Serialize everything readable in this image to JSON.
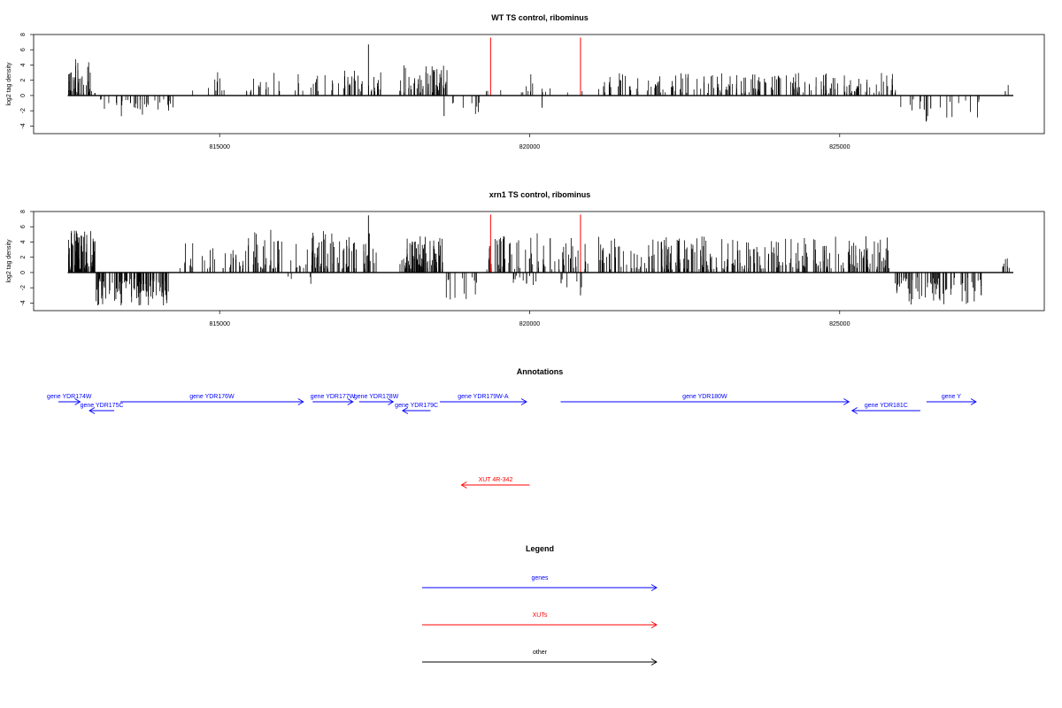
{
  "colors": {
    "gene": "#0000ff",
    "xut": "#ff0000",
    "other": "#000000",
    "bar": "#000000"
  },
  "chart_data": [
    {
      "type": "bar",
      "title": "WT TS control, ribominus",
      "ylabel": "log2 tag density",
      "yticks": [
        "-4",
        "-2",
        "0",
        "2",
        "4",
        "6",
        "8"
      ],
      "ylim": [
        -5,
        8
      ],
      "xlim": [
        812000,
        828300
      ],
      "xtick_values": [
        815000,
        820000,
        825000
      ],
      "xtick_labels": [
        "815000",
        "820000",
        "825000"
      ],
      "seed": 11,
      "highlight_bars": [
        {
          "x": 819370,
          "y": 7.6
        },
        {
          "x": 820820,
          "y": 7.6
        }
      ],
      "density_segments": [
        {
          "from": 812550,
          "to": 813000,
          "min": 0.3,
          "max": 4.8,
          "n": 40
        },
        {
          "from": 813000,
          "to": 814300,
          "min": -2.8,
          "max": -0.5,
          "n": 34
        },
        {
          "from": 814350,
          "to": 815200,
          "min": 0.6,
          "max": 3.2,
          "n": 9
        },
        {
          "from": 815400,
          "to": 817100,
          "min": 0.5,
          "max": 3.0,
          "n": 30
        },
        {
          "from": 816800,
          "to": 817600,
          "min": 0.5,
          "max": 3.3,
          "n": 30
        },
        {
          "from": 817900,
          "to": 818700,
          "min": 0.4,
          "max": 4.0,
          "n": 55
        },
        {
          "from": 818500,
          "to": 819200,
          "min": -2.6,
          "max": -0.6,
          "n": 8
        },
        {
          "from": 819300,
          "to": 821100,
          "min": 0.4,
          "max": 2.8,
          "n": 16
        },
        {
          "from": 821100,
          "to": 825900,
          "min": 0.3,
          "max": 3.0,
          "n": 190
        },
        {
          "from": 825950,
          "to": 827300,
          "min": -3.5,
          "max": -0.5,
          "n": 22
        },
        {
          "from": 827650,
          "to": 827720,
          "min": 0.5,
          "max": 2.0,
          "n": 3
        }
      ],
      "spikes": [
        {
          "x": 817400,
          "y": 6.7
        },
        {
          "x": 818620,
          "y": -2.7
        },
        {
          "x": 820200,
          "y": -1.6
        },
        {
          "x": 826400,
          "y": -3.3
        }
      ]
    },
    {
      "type": "bar",
      "title": "xrn1 TS control, ribominus",
      "ylabel": "log2 tag density",
      "yticks": [
        "-4",
        "-2",
        "0",
        "2",
        "4",
        "6",
        "8"
      ],
      "ylim": [
        -5,
        8
      ],
      "xlim": [
        812000,
        828300
      ],
      "xtick_values": [
        815000,
        820000,
        825000
      ],
      "xtick_labels": [
        "815000",
        "820000",
        "825000"
      ],
      "seed": 29,
      "highlight_bars": [
        {
          "x": 819370,
          "y": 7.6
        },
        {
          "x": 820820,
          "y": 7.6
        }
      ],
      "density_segments": [
        {
          "from": 812550,
          "to": 813000,
          "min": 0.4,
          "max": 5.8,
          "n": 70
        },
        {
          "from": 813000,
          "to": 814200,
          "min": -4.4,
          "max": -0.8,
          "n": 110
        },
        {
          "from": 814350,
          "to": 815300,
          "min": 0.5,
          "max": 4.0,
          "n": 30
        },
        {
          "from": 815300,
          "to": 817600,
          "min": 0.5,
          "max": 5.6,
          "n": 120
        },
        {
          "from": 816100,
          "to": 816500,
          "min": -1.8,
          "max": -0.5,
          "n": 4
        },
        {
          "from": 817900,
          "to": 818600,
          "min": 0.5,
          "max": 4.8,
          "n": 90
        },
        {
          "from": 818650,
          "to": 819300,
          "min": -3.6,
          "max": -0.6,
          "n": 12
        },
        {
          "from": 819300,
          "to": 821000,
          "min": 0.4,
          "max": 5.2,
          "n": 70
        },
        {
          "from": 819700,
          "to": 821000,
          "min": -2.2,
          "max": -0.4,
          "n": 18
        },
        {
          "from": 821100,
          "to": 825800,
          "min": 0.4,
          "max": 4.8,
          "n": 260
        },
        {
          "from": 825850,
          "to": 827300,
          "min": -4.2,
          "max": -0.6,
          "n": 70
        },
        {
          "from": 827600,
          "to": 827750,
          "min": 0.6,
          "max": 2.2,
          "n": 8
        }
      ],
      "spikes": [
        {
          "x": 817400,
          "y": 7.5
        },
        {
          "x": 820820,
          "y": -3.0
        },
        {
          "x": 813700,
          "y": -4.3
        }
      ]
    }
  ],
  "annotations": {
    "title": "Annotations",
    "genes": [
      {
        "label": "gene YDR174W",
        "from": 812400,
        "to": 812750,
        "strand": "+",
        "row": 0
      },
      {
        "label": "gene YDR175C",
        "from": 813300,
        "to": 812900,
        "strand": "-",
        "row": 1
      },
      {
        "label": "gene YDR176W",
        "from": 813400,
        "to": 816350,
        "strand": "+",
        "row": 0
      },
      {
        "label": "gene YDR177W",
        "from": 816500,
        "to": 817150,
        "strand": "+",
        "row": 0
      },
      {
        "label": "gene YDR178W",
        "from": 817250,
        "to": 817800,
        "strand": "+",
        "row": 0
      },
      {
        "label": "gene YDR179C",
        "from": 818400,
        "to": 817950,
        "strand": "-",
        "row": 1
      },
      {
        "label": "gene YDR179W-A",
        "from": 818550,
        "to": 819950,
        "strand": "+",
        "row": 0
      },
      {
        "label": "gene YDR180W",
        "from": 820500,
        "to": 825150,
        "strand": "+",
        "row": 0
      },
      {
        "label": "gene YDR181C",
        "from": 826300,
        "to": 825200,
        "strand": "-",
        "row": 1
      },
      {
        "label": "gene Y",
        "from": 826400,
        "to": 827200,
        "strand": "+",
        "row": 0
      }
    ],
    "xuts": [
      {
        "label": "XUT 4R-342",
        "from": 820000,
        "to": 818900,
        "strand": "-"
      }
    ]
  },
  "legend": {
    "title": "Legend",
    "items": [
      {
        "label": "genes",
        "color": "#0000ff"
      },
      {
        "label": "XUTs",
        "color": "#ff0000"
      },
      {
        "label": "other",
        "color": "#000000"
      }
    ]
  }
}
